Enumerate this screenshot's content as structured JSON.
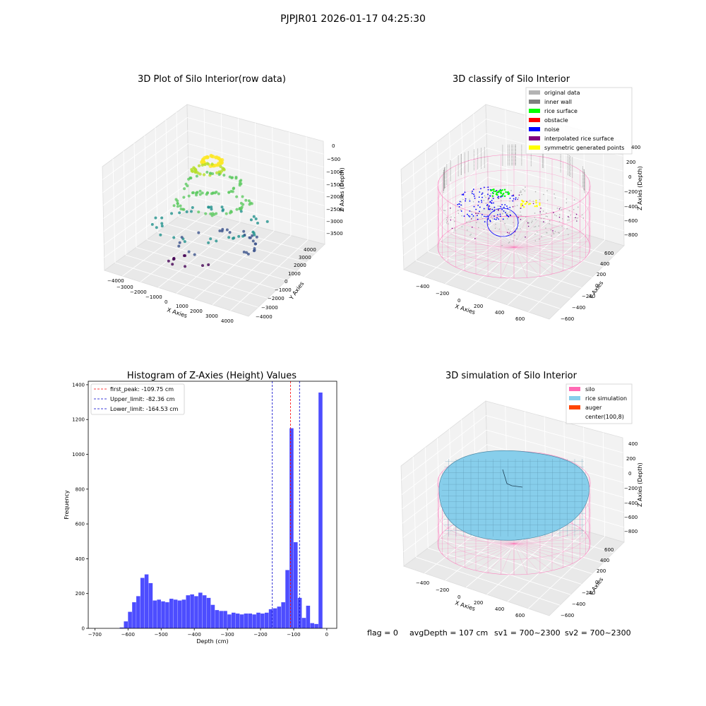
{
  "figure": {
    "suptitle": "PJPJR01 2026-01-17 04:25:30",
    "footer": {
      "flag": "flag = 0",
      "avg": "avgDepth = 107 cm",
      "sv1": "sv1 = 700~2300",
      "sv2": "sv2 = 700~2300"
    }
  },
  "colors": {
    "histogram_bar": "#4d4dff",
    "first_peak_line": "#ff0000",
    "limit_lines": "#0000cc",
    "silo_wire": "#ff69b4",
    "rice_surface": "#87ceeb",
    "original_data": "#b3b3b3",
    "inner_wall": "#808080",
    "rice": "#00ff00",
    "obstacle": "#ff0000",
    "noise": "#0000ff",
    "interpolated": "#800080",
    "symmetric": "#ffff00",
    "auger": "#ff4500"
  },
  "chart_data": [
    {
      "type": "scatter",
      "projection": "3d",
      "title": "3D Plot of Silo Interior(row data)",
      "xlabel": "X Axies",
      "ylabel": "Y Axies",
      "zlabel": "Z Axies (Depth)",
      "x_ticks": [
        "−4000",
        "−3000",
        "−2000",
        "−1000",
        "0",
        "1000",
        "2000",
        "3000",
        "4000"
      ],
      "y_ticks": [
        "−4000",
        "−3000",
        "−2000",
        "−1000",
        "0",
        "1000",
        "2000",
        "3000",
        "4000"
      ],
      "z_ticks": [
        "0",
        "−500",
        "−1000",
        "−1500",
        "−2000",
        "−2500",
        "−3000",
        "−3500"
      ],
      "xlim": [
        -4000,
        4000
      ],
      "ylim": [
        -4000,
        4000
      ],
      "zlim": [
        -3800,
        0
      ]
    },
    {
      "type": "scatter",
      "projection": "3d",
      "title": "3D classify of Silo Interior",
      "xlabel": "X Axies",
      "ylabel": "Y Axies",
      "zlabel": "Z Axies (Depth)",
      "x_ticks": [
        "−400",
        "−200",
        "0",
        "200",
        "400",
        "600"
      ],
      "y_ticks": [
        "−600",
        "−400",
        "−200",
        "0",
        "200",
        "400",
        "600"
      ],
      "z_ticks": [
        "400",
        "200",
        "0",
        "−200",
        "−400",
        "−600",
        "−800"
      ],
      "legend_position": "upper-right",
      "legend": [
        {
          "label": "original data",
          "color": "#b3b3b3"
        },
        {
          "label": "inner wall",
          "color": "#808080"
        },
        {
          "label": "rice surface",
          "color": "#00ff00"
        },
        {
          "label": "obstacle",
          "color": "#ff0000"
        },
        {
          "label": "noise",
          "color": "#0000ff"
        },
        {
          "label": "interpolated rice surface",
          "color": "#800080"
        },
        {
          "label": "symmetric generated points",
          "color": "#ffff00"
        }
      ]
    },
    {
      "type": "bar",
      "title": "Histogram of Z-Axies (Height) Values",
      "xlabel": "Depth (cm)",
      "ylabel": "Frequency",
      "xlim": [
        -720,
        30
      ],
      "ylim": [
        0,
        1420
      ],
      "x_ticks": [
        -700,
        -600,
        -500,
        -400,
        -300,
        -200,
        -100,
        0
      ],
      "y_ticks": [
        0,
        200,
        400,
        600,
        800,
        1000,
        1200,
        1400
      ],
      "bin_width": 12.5,
      "bins_left": [
        -625,
        -612.5,
        -600,
        -587.5,
        -575,
        -562.5,
        -550,
        -537.5,
        -525,
        -512.5,
        -500,
        -487.5,
        -475,
        -462.5,
        -450,
        -437.5,
        -425,
        -412.5,
        -400,
        -387.5,
        -375,
        -362.5,
        -350,
        -337.5,
        -325,
        -312.5,
        -300,
        -287.5,
        -275,
        -262.5,
        -250,
        -237.5,
        -225,
        -212.5,
        -200,
        -187.5,
        -175,
        -162.5,
        -150,
        -137.5,
        -125,
        -112.5,
        -100,
        -87.5,
        -75,
        -62.5,
        -50,
        -37.5,
        -25,
        -12.5
      ],
      "values": [
        5,
        40,
        95,
        150,
        185,
        290,
        310,
        260,
        160,
        165,
        155,
        150,
        170,
        165,
        160,
        165,
        190,
        195,
        185,
        205,
        190,
        175,
        135,
        105,
        100,
        100,
        80,
        90,
        85,
        80,
        85,
        85,
        80,
        90,
        85,
        90,
        110,
        115,
        125,
        150,
        335,
        1150,
        495,
        175,
        60,
        130,
        30,
        25,
        1355,
        0
      ],
      "legend": [
        {
          "label": "first_peak: -109.75 cm",
          "x": -109.75,
          "color": "#ff0000"
        },
        {
          "label": "Upper_limit: -82.36 cm",
          "x": -82.36,
          "color": "#0000cc"
        },
        {
          "label": "Lower_limit: -164.53 cm",
          "x": -164.53,
          "color": "#0000cc"
        }
      ]
    },
    {
      "type": "area",
      "projection": "3d",
      "title": "3D simulation of Silo Interior",
      "xlabel": "X Axies",
      "ylabel": "Y Axies",
      "zlabel": "Z Axies (Depth)",
      "x_ticks": [
        "−400",
        "−200",
        "0",
        "200",
        "400",
        "600"
      ],
      "y_ticks": [
        "−600",
        "−400",
        "−200",
        "0",
        "200",
        "400",
        "600"
      ],
      "z_ticks": [
        "400",
        "200",
        "0",
        "−200",
        "−400",
        "−600",
        "−800"
      ],
      "legend_position": "upper-right",
      "legend": [
        {
          "label": "silo",
          "color": "#ff69b4"
        },
        {
          "label": "rice simulation",
          "color": "#87ceeb"
        },
        {
          "label": "auger",
          "color": "#ff4500"
        },
        {
          "label": "center(100,8)",
          "color": ""
        }
      ]
    }
  ]
}
